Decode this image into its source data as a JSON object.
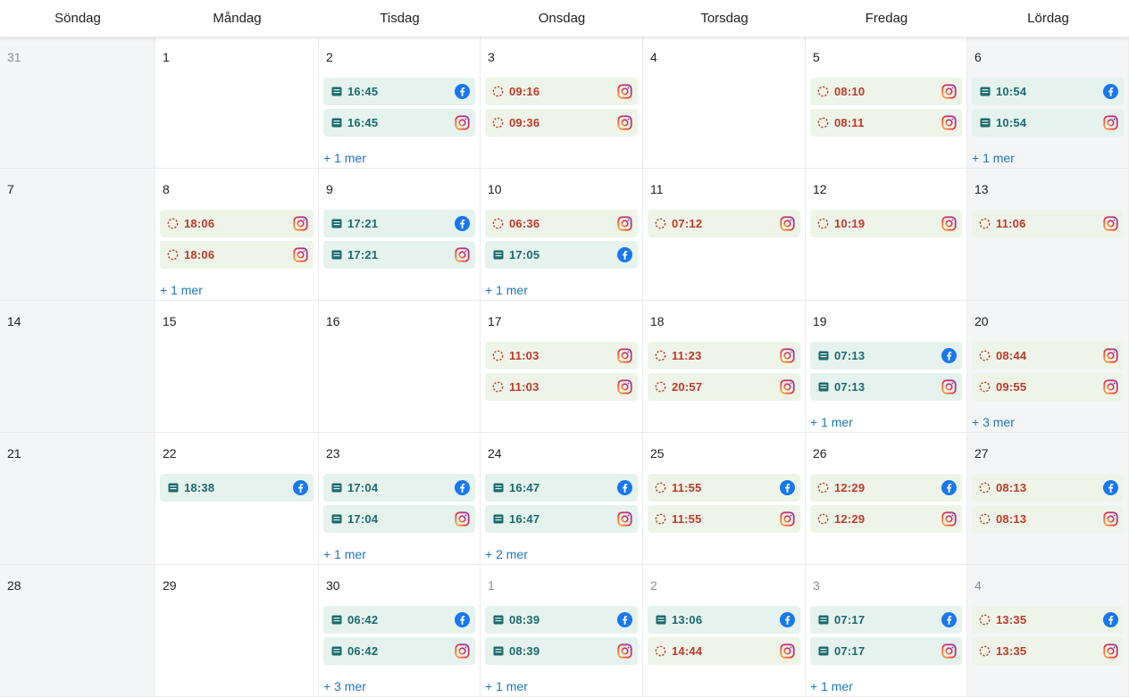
{
  "weekdays": [
    "Söndag",
    "Måndag",
    "Tisdag",
    "Onsdag",
    "Torsdag",
    "Fredag",
    "Lördag"
  ],
  "weeks": [
    [
      {
        "day": "31",
        "muted": true,
        "weekend": true,
        "events": []
      },
      {
        "day": "1",
        "events": []
      },
      {
        "day": "2",
        "events": [
          {
            "time": "16:45",
            "status": "published",
            "platform": "facebook"
          },
          {
            "time": "16:45",
            "status": "published",
            "platform": "instagram"
          }
        ],
        "more": "+ 1 mer"
      },
      {
        "day": "3",
        "events": [
          {
            "time": "09:16",
            "status": "pending",
            "platform": "instagram"
          },
          {
            "time": "09:36",
            "status": "pending",
            "platform": "instagram"
          }
        ]
      },
      {
        "day": "4",
        "events": []
      },
      {
        "day": "5",
        "events": [
          {
            "time": "08:10",
            "status": "pending",
            "platform": "instagram"
          },
          {
            "time": "08:11",
            "status": "pending",
            "platform": "instagram"
          }
        ]
      },
      {
        "day": "6",
        "weekend": true,
        "events": [
          {
            "time": "10:54",
            "status": "published",
            "platform": "facebook"
          },
          {
            "time": "10:54",
            "status": "published",
            "platform": "instagram"
          }
        ],
        "more": "+ 1 mer"
      }
    ],
    [
      {
        "day": "7",
        "weekend": true,
        "events": []
      },
      {
        "day": "8",
        "events": [
          {
            "time": "18:06",
            "status": "pending",
            "platform": "instagram"
          },
          {
            "time": "18:06",
            "status": "pending",
            "platform": "instagram"
          }
        ],
        "more": "+ 1 mer"
      },
      {
        "day": "9",
        "events": [
          {
            "time": "17:21",
            "status": "published",
            "platform": "facebook"
          },
          {
            "time": "17:21",
            "status": "published",
            "platform": "instagram"
          }
        ]
      },
      {
        "day": "10",
        "events": [
          {
            "time": "06:36",
            "status": "pending",
            "platform": "instagram"
          },
          {
            "time": "17:05",
            "status": "published",
            "platform": "facebook"
          }
        ],
        "more": "+ 1 mer"
      },
      {
        "day": "11",
        "events": [
          {
            "time": "07:12",
            "status": "pending",
            "platform": "instagram"
          }
        ]
      },
      {
        "day": "12",
        "events": [
          {
            "time": "10:19",
            "status": "pending",
            "platform": "instagram"
          }
        ]
      },
      {
        "day": "13",
        "weekend": true,
        "events": [
          {
            "time": "11:06",
            "status": "pending",
            "platform": "instagram"
          }
        ]
      }
    ],
    [
      {
        "day": "14",
        "weekend": true,
        "events": []
      },
      {
        "day": "15",
        "events": []
      },
      {
        "day": "16",
        "events": []
      },
      {
        "day": "17",
        "events": [
          {
            "time": "11:03",
            "status": "pending",
            "platform": "instagram"
          },
          {
            "time": "11:03",
            "status": "pending",
            "platform": "instagram"
          }
        ]
      },
      {
        "day": "18",
        "events": [
          {
            "time": "11:23",
            "status": "pending",
            "platform": "instagram"
          },
          {
            "time": "20:57",
            "status": "pending",
            "platform": "instagram"
          }
        ]
      },
      {
        "day": "19",
        "events": [
          {
            "time": "07:13",
            "status": "published",
            "platform": "facebook"
          },
          {
            "time": "07:13",
            "status": "published",
            "platform": "instagram"
          }
        ],
        "more": "+ 1 mer"
      },
      {
        "day": "20",
        "weekend": true,
        "events": [
          {
            "time": "08:44",
            "status": "pending",
            "platform": "instagram"
          },
          {
            "time": "09:55",
            "status": "pending",
            "platform": "instagram"
          }
        ],
        "more": "+ 3 mer"
      }
    ],
    [
      {
        "day": "21",
        "weekend": true,
        "events": []
      },
      {
        "day": "22",
        "events": [
          {
            "time": "18:38",
            "status": "published",
            "platform": "facebook"
          }
        ]
      },
      {
        "day": "23",
        "events": [
          {
            "time": "17:04",
            "status": "published",
            "platform": "facebook"
          },
          {
            "time": "17:04",
            "status": "published",
            "platform": "instagram"
          }
        ],
        "more": "+ 1 mer"
      },
      {
        "day": "24",
        "events": [
          {
            "time": "16:47",
            "status": "published",
            "platform": "facebook"
          },
          {
            "time": "16:47",
            "status": "published",
            "platform": "instagram"
          }
        ],
        "more": "+ 2 mer"
      },
      {
        "day": "25",
        "events": [
          {
            "time": "11:55",
            "status": "pending",
            "platform": "facebook"
          },
          {
            "time": "11:55",
            "status": "pending",
            "platform": "instagram"
          }
        ]
      },
      {
        "day": "26",
        "events": [
          {
            "time": "12:29",
            "status": "pending",
            "platform": "facebook"
          },
          {
            "time": "12:29",
            "status": "pending",
            "platform": "instagram"
          }
        ]
      },
      {
        "day": "27",
        "weekend": true,
        "events": [
          {
            "time": "08:13",
            "status": "pending",
            "platform": "facebook"
          },
          {
            "time": "08:13",
            "status": "pending",
            "platform": "instagram"
          }
        ]
      }
    ],
    [
      {
        "day": "28",
        "weekend": true,
        "events": []
      },
      {
        "day": "29",
        "events": []
      },
      {
        "day": "30",
        "events": [
          {
            "time": "06:42",
            "status": "published",
            "platform": "facebook"
          },
          {
            "time": "06:42",
            "status": "published",
            "platform": "instagram"
          }
        ],
        "more": "+ 3 mer"
      },
      {
        "day": "1",
        "muted": true,
        "events": [
          {
            "time": "08:39",
            "status": "published",
            "platform": "facebook"
          },
          {
            "time": "08:39",
            "status": "published",
            "platform": "instagram"
          }
        ],
        "more": "+ 1 mer"
      },
      {
        "day": "2",
        "muted": true,
        "events": [
          {
            "time": "13:06",
            "status": "published",
            "platform": "facebook"
          },
          {
            "time": "14:44",
            "status": "pending",
            "platform": "instagram"
          }
        ]
      },
      {
        "day": "3",
        "muted": true,
        "events": [
          {
            "time": "07:17",
            "status": "published",
            "platform": "facebook"
          },
          {
            "time": "07:17",
            "status": "published",
            "platform": "instagram"
          }
        ],
        "more": "+ 1 mer"
      },
      {
        "day": "4",
        "muted": true,
        "weekend": true,
        "events": [
          {
            "time": "13:35",
            "status": "pending",
            "platform": "facebook"
          },
          {
            "time": "13:35",
            "status": "pending",
            "platform": "instagram"
          }
        ]
      }
    ]
  ],
  "colors": {
    "published_bg": "#e5f2ee",
    "published_text": "#1c6b6b",
    "pending_bg": "#eef5e8",
    "pending_text": "#c0392b",
    "link": "#2176c4",
    "facebook": "#1877f2"
  },
  "icons": {
    "published": "message-icon",
    "pending": "dashed-circle-icon",
    "facebook": "facebook-icon",
    "instagram": "instagram-icon"
  }
}
